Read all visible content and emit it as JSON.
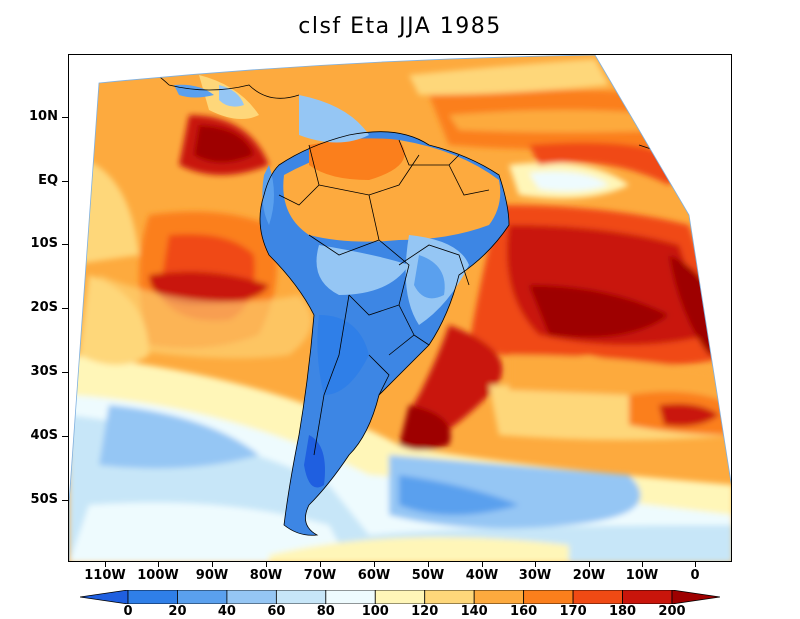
{
  "title": "clsf Eta JJA 1985",
  "y_axis": {
    "labels": [
      "10N",
      "EQ",
      "10S",
      "20S",
      "30S",
      "40S",
      "50S"
    ]
  },
  "x_axis": {
    "labels": [
      "110W",
      "100W",
      "90W",
      "80W",
      "70W",
      "60W",
      "50W",
      "40W",
      "30W",
      "20W",
      "10W",
      "0"
    ]
  },
  "colorbar": {
    "labels": [
      "0",
      "20",
      "40",
      "60",
      "80",
      "100",
      "120",
      "140",
      "160",
      "170",
      "180",
      "200"
    ],
    "colors": [
      "#1f5fe0",
      "#2f7fe8",
      "#5aa0ee",
      "#95c6f4",
      "#c7e6f8",
      "#eefbfe",
      "#fff6b8",
      "#fed77a",
      "#fdaa3e",
      "#fb7f1c",
      "#f04a14",
      "#c9150b",
      "#9e0000"
    ]
  },
  "colors": {
    "ocean_background": "#fdaa3e",
    "land_low": "#3d86e4",
    "border": "#000000"
  }
}
